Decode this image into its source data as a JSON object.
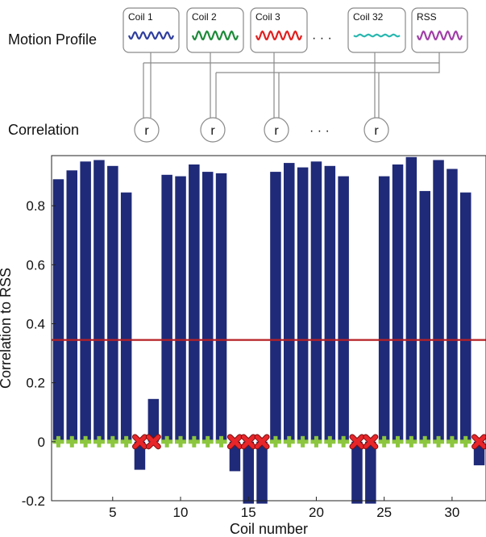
{
  "diagram": {
    "motion_profile_label": "Motion Profile",
    "correlation_label": "Correlation",
    "coils": [
      {
        "label": "Coil 1",
        "color": "#2f3e9e"
      },
      {
        "label": "Coil 2",
        "color": "#1e8a3a"
      },
      {
        "label": "Coil 3",
        "color": "#e02020"
      },
      {
        "label": "Coil 32",
        "color": "#2ab8b0"
      },
      {
        "label": "RSS",
        "color": "#a040a8"
      }
    ],
    "ellipsis": "· · ·",
    "r_symbol": "r"
  },
  "chart_data": {
    "type": "bar",
    "xlabel": "Coil number",
    "ylabel": "Correlation to RSS",
    "xlim": [
      0.5,
      32.5
    ],
    "ylim": [
      -0.2,
      0.97
    ],
    "xticks": [
      5,
      10,
      15,
      20,
      25,
      30
    ],
    "yticks": [
      -0.2,
      0,
      0.2,
      0.4,
      0.6,
      0.8
    ],
    "x": [
      1,
      2,
      3,
      4,
      5,
      6,
      7,
      8,
      9,
      10,
      11,
      12,
      13,
      14,
      15,
      16,
      17,
      18,
      19,
      20,
      21,
      22,
      23,
      24,
      25,
      26,
      27,
      28,
      29,
      30,
      31,
      32
    ],
    "values": [
      0.89,
      0.92,
      0.95,
      0.955,
      0.935,
      0.845,
      -0.095,
      0.145,
      0.905,
      0.9,
      0.94,
      0.915,
      0.91,
      -0.1,
      -0.21,
      -0.21,
      0.915,
      0.945,
      0.93,
      0.95,
      0.935,
      0.9,
      -0.21,
      -0.21,
      0.9,
      0.94,
      0.965,
      0.85,
      0.955,
      0.925,
      0.845,
      -0.08
    ],
    "bar_color": "#1f2a78",
    "threshold": 0.345,
    "threshold_color": "#b52025",
    "included_coils": [
      1,
      2,
      3,
      4,
      5,
      6,
      9,
      10,
      11,
      12,
      13,
      17,
      18,
      19,
      20,
      21,
      22,
      25,
      26,
      27,
      28,
      29,
      30,
      31
    ],
    "excluded_coils": [
      7,
      8,
      14,
      15,
      16,
      23,
      24,
      32
    ],
    "included_marker": "plus",
    "included_color": "#8cc63f",
    "excluded_marker": "x",
    "excluded_color": "#e8262a",
    "grid": false
  }
}
